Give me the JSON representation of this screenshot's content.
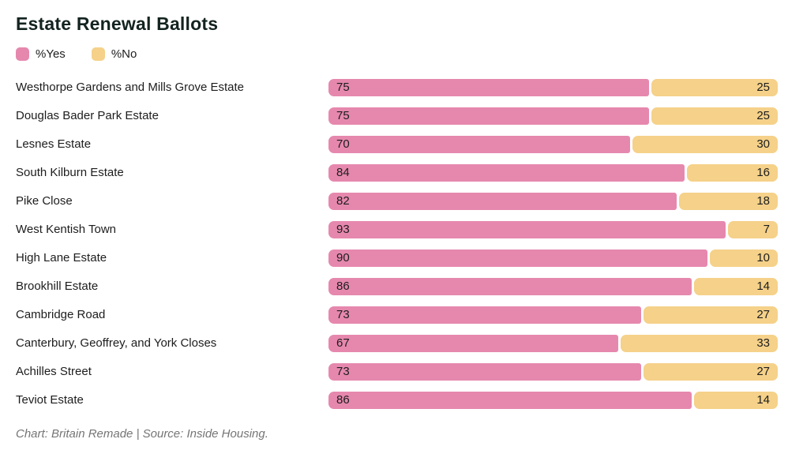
{
  "title": "Estate Renewal Ballots",
  "legend": {
    "items": [
      {
        "label": "%Yes",
        "color": "#e688ae"
      },
      {
        "label": "%No",
        "color": "#f5d189"
      }
    ]
  },
  "footer": "Chart: Britain Remade | Source: Inside Housing.",
  "colors": {
    "yes_bar": "#e688ae",
    "no_bar": "#f5d189",
    "title_text": "#132320",
    "body_text": "#1d1d1d",
    "footer_text": "#757575"
  },
  "chart_data": {
    "type": "bar",
    "orientation": "horizontal",
    "stacked": true,
    "title": "Estate Renewal Ballots",
    "categories": [
      "Westhorpe Gardens and Mills Grove Estate",
      "Douglas Bader Park Estate",
      "Lesnes Estate",
      "South Kilburn Estate",
      "Pike Close",
      "West Kentish Town",
      "High Lane Estate",
      "Brookhill Estate",
      "Cambridge Road",
      "Canterbury, Geoffrey, and York Closes",
      "Achilles Street",
      "Teviot Estate"
    ],
    "series": [
      {
        "name": "%Yes",
        "color": "#e688ae",
        "values": [
          75,
          75,
          70,
          84,
          82,
          93,
          90,
          86,
          73,
          67,
          73,
          86
        ]
      },
      {
        "name": "%No",
        "color": "#f5d189",
        "values": [
          25,
          25,
          30,
          16,
          18,
          7,
          10,
          14,
          27,
          33,
          27,
          14
        ]
      }
    ],
    "xlim": [
      0,
      100
    ],
    "grid": false,
    "legend_position": "top-left",
    "value_labels": "inside",
    "source_note": "Chart: Britain Remade | Source: Inside Housing."
  }
}
